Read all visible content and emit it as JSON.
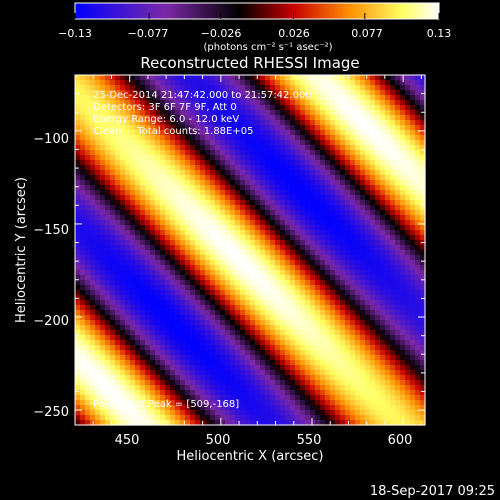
{
  "chart_data": {
    "type": "heatmap",
    "title": "Reconstructed RHESSI Image",
    "xlabel": "Heliocentric X (arcsec)",
    "ylabel": "Heliocentric Y (arcsec)",
    "xlim": [
      420,
      612
    ],
    "ylim": [
      -258,
      -70
    ],
    "x_ticks": [
      450,
      500,
      550,
      600
    ],
    "y_ticks": [
      -100,
      -150,
      -200,
      -250
    ],
    "x_tick_labels": [
      "450",
      "500",
      "550",
      "600"
    ],
    "y_tick_labels": [
      "−100",
      "−150",
      "−200",
      "−250"
    ],
    "colorbar": {
      "ticks": [
        -0.13,
        -0.077,
        -0.026,
        0.026,
        0.077,
        0.13
      ],
      "tick_labels": [
        "−0.13",
        "−0.077",
        "−0.026",
        "0.026",
        "0.077",
        "0.13"
      ],
      "unit_label": "(photons cm⁻² s⁻¹ asec⁻²)",
      "colors": [
        "#0000ff",
        "#7c28a8",
        "#000000",
        "#c80000",
        "#ff8c00",
        "#ffff64",
        "#ffffff"
      ]
    },
    "annotations": [
      "25-Dec-2014 21:47:42.000 to 21:57:42.000",
      "Detectors: 3F 6F 7F 9F, Att 0",
      "Energy Range: 6.0 - 12.0 keV",
      "Clean     Total counts: 1.88E+05"
    ],
    "peak_text": "Position of Peak = [509,-168]",
    "peak": {
      "x": 509,
      "y": -168
    },
    "stripe_pattern": {
      "direction_deg": 135,
      "period_arcsec": 100,
      "amplitude": 0.13
    }
  },
  "footer": {
    "timestamp": "18-Sep-2017 09:25"
  }
}
